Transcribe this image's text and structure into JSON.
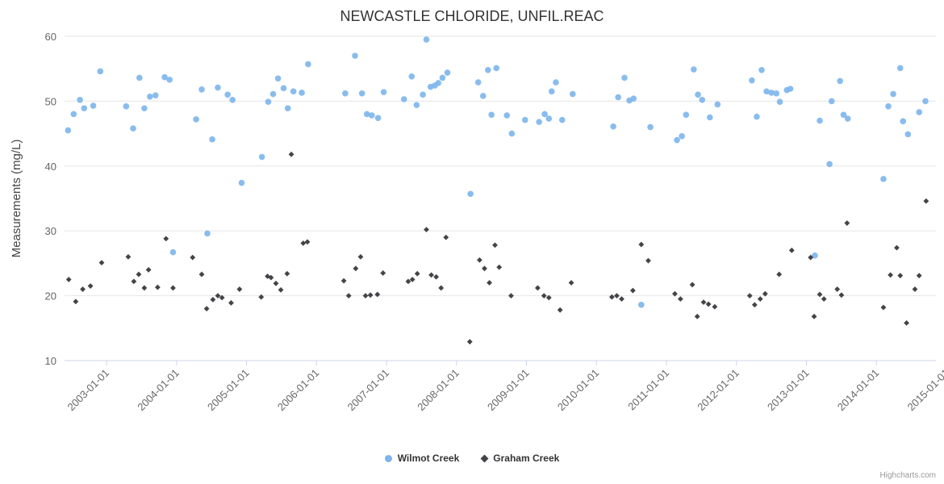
{
  "credit": "Highcharts.com",
  "chart_data": {
    "type": "scatter",
    "title": "NEWCASTLE CHLORIDE, UNFIL.REAC",
    "xlabel": "",
    "ylabel": "Measurements (mg/L)",
    "ylim": [
      10,
      60
    ],
    "xlim": [
      2002.4,
      2014.85
    ],
    "y_ticks": [
      10,
      20,
      30,
      40,
      50,
      60
    ],
    "grid": "horizontal",
    "legend_position": "bottom",
    "x_ticks": [
      {
        "year": 2003,
        "label": "2003-01-01"
      },
      {
        "year": 2004,
        "label": "2004-01-01"
      },
      {
        "year": 2005,
        "label": "2005-01-01"
      },
      {
        "year": 2006,
        "label": "2006-01-01"
      },
      {
        "year": 2007,
        "label": "2007-01-01"
      },
      {
        "year": 2008,
        "label": "2008-01-01"
      },
      {
        "year": 2009,
        "label": "2009-01-01"
      },
      {
        "year": 2010,
        "label": "2010-01-01"
      },
      {
        "year": 2011,
        "label": "2011-01-01"
      },
      {
        "year": 2012,
        "label": "2012-01-01"
      },
      {
        "year": 2013,
        "label": "2013-01-01"
      },
      {
        "year": 2014,
        "label": "2014-01-01"
      },
      {
        "year": 2015,
        "label": "2015-01-01"
      }
    ],
    "series": [
      {
        "name": "Wilmot Creek",
        "marker": "circle",
        "color": "#7cb5ec",
        "points": [
          [
            2002.45,
            45.5
          ],
          [
            2002.53,
            48.0
          ],
          [
            2002.62,
            50.2
          ],
          [
            2002.68,
            48.9
          ],
          [
            2002.81,
            49.3
          ],
          [
            2002.91,
            54.6
          ],
          [
            2003.28,
            49.2
          ],
          [
            2003.38,
            45.8
          ],
          [
            2003.47,
            53.6
          ],
          [
            2003.54,
            48.9
          ],
          [
            2003.62,
            50.7
          ],
          [
            2003.7,
            50.9
          ],
          [
            2003.83,
            53.7
          ],
          [
            2003.9,
            53.3
          ],
          [
            2003.95,
            26.7
          ],
          [
            2004.28,
            47.2
          ],
          [
            2004.36,
            51.8
          ],
          [
            2004.44,
            29.6
          ],
          [
            2004.51,
            44.1
          ],
          [
            2004.59,
            52.1
          ],
          [
            2004.73,
            51.0
          ],
          [
            2004.8,
            50.2
          ],
          [
            2004.93,
            37.4
          ],
          [
            2005.22,
            41.4
          ],
          [
            2005.31,
            49.9
          ],
          [
            2005.38,
            51.1
          ],
          [
            2005.45,
            53.5
          ],
          [
            2005.53,
            52.0
          ],
          [
            2005.59,
            48.9
          ],
          [
            2005.67,
            51.5
          ],
          [
            2005.79,
            51.3
          ],
          [
            2005.88,
            55.7
          ],
          [
            2006.41,
            51.2
          ],
          [
            2006.55,
            57.0
          ],
          [
            2006.65,
            51.2
          ],
          [
            2006.72,
            48.0
          ],
          [
            2006.79,
            47.8
          ],
          [
            2006.88,
            47.4
          ],
          [
            2006.96,
            51.4
          ],
          [
            2007.25,
            50.3
          ],
          [
            2007.36,
            53.8
          ],
          [
            2007.43,
            49.4
          ],
          [
            2007.52,
            51.0
          ],
          [
            2007.57,
            59.5
          ],
          [
            2007.63,
            52.2
          ],
          [
            2007.69,
            52.4
          ],
          [
            2007.74,
            52.8
          ],
          [
            2007.8,
            53.6
          ],
          [
            2007.87,
            54.4
          ],
          [
            2008.2,
            35.7
          ],
          [
            2008.31,
            52.9
          ],
          [
            2008.38,
            50.8
          ],
          [
            2008.45,
            54.8
          ],
          [
            2008.5,
            47.9
          ],
          [
            2008.57,
            55.1
          ],
          [
            2008.72,
            47.8
          ],
          [
            2008.79,
            45.0
          ],
          [
            2008.98,
            47.1
          ],
          [
            2009.18,
            46.8
          ],
          [
            2009.26,
            48.0
          ],
          [
            2009.32,
            47.3
          ],
          [
            2009.36,
            51.5
          ],
          [
            2009.42,
            52.9
          ],
          [
            2009.51,
            47.1
          ],
          [
            2009.66,
            51.1
          ],
          [
            2010.24,
            46.1
          ],
          [
            2010.31,
            50.6
          ],
          [
            2010.4,
            53.6
          ],
          [
            2010.47,
            50.1
          ],
          [
            2010.53,
            50.4
          ],
          [
            2010.64,
            18.6
          ],
          [
            2010.77,
            46.0
          ],
          [
            2011.15,
            44.0
          ],
          [
            2011.22,
            44.6
          ],
          [
            2011.28,
            47.9
          ],
          [
            2011.39,
            54.9
          ],
          [
            2011.45,
            51.0
          ],
          [
            2011.51,
            50.2
          ],
          [
            2011.62,
            47.5
          ],
          [
            2011.73,
            49.5
          ],
          [
            2012.22,
            53.2
          ],
          [
            2012.29,
            47.6
          ],
          [
            2012.36,
            54.8
          ],
          [
            2012.43,
            51.5
          ],
          [
            2012.5,
            51.3
          ],
          [
            2012.57,
            51.2
          ],
          [
            2012.62,
            49.9
          ],
          [
            2012.72,
            51.7
          ],
          [
            2012.77,
            51.9
          ],
          [
            2013.12,
            26.2
          ],
          [
            2013.19,
            47.0
          ],
          [
            2013.33,
            40.3
          ],
          [
            2013.36,
            50.0
          ],
          [
            2013.48,
            53.1
          ],
          [
            2013.53,
            47.9
          ],
          [
            2013.59,
            47.3
          ],
          [
            2014.1,
            38.0
          ],
          [
            2014.17,
            49.2
          ],
          [
            2014.24,
            51.1
          ],
          [
            2014.34,
            55.1
          ],
          [
            2014.38,
            46.9
          ],
          [
            2014.45,
            44.9
          ],
          [
            2014.61,
            48.3
          ],
          [
            2014.7,
            50.0
          ]
        ]
      },
      {
        "name": "Graham Creek",
        "marker": "diamond",
        "color": "#434348",
        "points": [
          [
            2002.46,
            22.5
          ],
          [
            2002.56,
            19.1
          ],
          [
            2002.66,
            21.0
          ],
          [
            2002.77,
            21.5
          ],
          [
            2002.93,
            25.1
          ],
          [
            2003.31,
            26.0
          ],
          [
            2003.39,
            22.2
          ],
          [
            2003.46,
            23.3
          ],
          [
            2003.54,
            21.2
          ],
          [
            2003.6,
            24.0
          ],
          [
            2003.73,
            21.3
          ],
          [
            2003.85,
            28.8
          ],
          [
            2003.95,
            21.2
          ],
          [
            2004.23,
            25.9
          ],
          [
            2004.36,
            23.3
          ],
          [
            2004.43,
            18.0
          ],
          [
            2004.52,
            19.4
          ],
          [
            2004.59,
            20.0
          ],
          [
            2004.65,
            19.7
          ],
          [
            2004.78,
            18.9
          ],
          [
            2004.9,
            21.0
          ],
          [
            2005.21,
            19.8
          ],
          [
            2005.3,
            23.0
          ],
          [
            2005.35,
            22.8
          ],
          [
            2005.42,
            21.9
          ],
          [
            2005.49,
            20.9
          ],
          [
            2005.58,
            23.4
          ],
          [
            2005.64,
            41.8
          ],
          [
            2005.81,
            28.1
          ],
          [
            2005.87,
            28.3
          ],
          [
            2006.39,
            22.3
          ],
          [
            2006.46,
            20.0
          ],
          [
            2006.56,
            24.2
          ],
          [
            2006.63,
            26.0
          ],
          [
            2006.7,
            20.0
          ],
          [
            2006.77,
            20.1
          ],
          [
            2006.87,
            20.2
          ],
          [
            2006.95,
            23.5
          ],
          [
            2007.31,
            22.2
          ],
          [
            2007.37,
            22.5
          ],
          [
            2007.44,
            23.4
          ],
          [
            2007.57,
            30.2
          ],
          [
            2007.64,
            23.2
          ],
          [
            2007.71,
            22.9
          ],
          [
            2007.78,
            21.2
          ],
          [
            2007.85,
            29.0
          ],
          [
            2008.19,
            12.9
          ],
          [
            2008.33,
            25.5
          ],
          [
            2008.4,
            24.2
          ],
          [
            2008.47,
            22.0
          ],
          [
            2008.55,
            27.8
          ],
          [
            2008.61,
            24.4
          ],
          [
            2008.78,
            20.0
          ],
          [
            2009.16,
            21.2
          ],
          [
            2009.25,
            20.0
          ],
          [
            2009.32,
            19.7
          ],
          [
            2009.48,
            17.8
          ],
          [
            2009.64,
            22.0
          ],
          [
            2010.22,
            19.8
          ],
          [
            2010.29,
            20.0
          ],
          [
            2010.36,
            19.5
          ],
          [
            2010.52,
            20.8
          ],
          [
            2010.64,
            27.9
          ],
          [
            2010.74,
            25.4
          ],
          [
            2011.12,
            20.3
          ],
          [
            2011.2,
            19.5
          ],
          [
            2011.37,
            21.7
          ],
          [
            2011.44,
            16.8
          ],
          [
            2011.53,
            19.0
          ],
          [
            2011.6,
            18.7
          ],
          [
            2011.69,
            18.3
          ],
          [
            2012.19,
            20.0
          ],
          [
            2012.26,
            18.6
          ],
          [
            2012.34,
            19.5
          ],
          [
            2012.41,
            20.3
          ],
          [
            2012.61,
            23.3
          ],
          [
            2012.79,
            27.0
          ],
          [
            2013.06,
            25.9
          ],
          [
            2013.11,
            16.8
          ],
          [
            2013.19,
            20.2
          ],
          [
            2013.25,
            19.5
          ],
          [
            2013.44,
            21.0
          ],
          [
            2013.5,
            20.1
          ],
          [
            2013.58,
            31.2
          ],
          [
            2014.1,
            18.2
          ],
          [
            2014.2,
            23.2
          ],
          [
            2014.29,
            27.4
          ],
          [
            2014.34,
            23.1
          ],
          [
            2014.43,
            15.8
          ],
          [
            2014.55,
            21.0
          ],
          [
            2014.61,
            23.1
          ],
          [
            2014.71,
            34.6
          ]
        ]
      }
    ]
  }
}
